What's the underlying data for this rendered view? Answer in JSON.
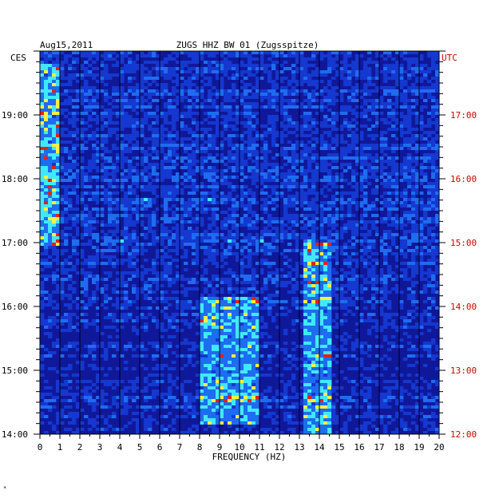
{
  "chart_data": {
    "type": "heatmap",
    "date": "Aug15,2011",
    "title": "ZUGS HHZ BW 01 (Zugsspitze)",
    "left_timezone": "CES",
    "right_timezone": "UTC",
    "xlabel": "FREQUENCY (HZ)",
    "xlim": [
      0,
      20
    ],
    "x_ticks": [
      "0",
      "1",
      "2",
      "3",
      "4",
      "5",
      "6",
      "7",
      "8",
      "9",
      "10",
      "11",
      "12",
      "13",
      "14",
      "15",
      "16",
      "17",
      "18",
      "19",
      "20"
    ],
    "left_time_ticks": [
      "19:00",
      "18:00",
      "17:00",
      "16:00",
      "15:00",
      "14:00"
    ],
    "right_time_ticks": [
      "17:00",
      "16:00",
      "15:00",
      "14:00",
      "13:00",
      "12:00"
    ],
    "time_range_local": [
      "14:00",
      "19:50"
    ],
    "grid": true,
    "colors": {
      "background": "#10189a",
      "low": "#0a10a8",
      "mid": "#1e6cf0",
      "high_cyan": "#40e8ff",
      "peak_yellow": "#f8f040",
      "peak_red": "#e82010",
      "grid": "#000000",
      "utc_text": "#cc0000",
      "text": "#000000"
    },
    "features": [
      {
        "name": "low-frequency noise band",
        "freq_hz": [
          0,
          1
        ],
        "time": "17:00-19:50",
        "level": "high"
      },
      {
        "name": "activity cluster",
        "freq_hz": [
          8,
          11
        ],
        "time": "14:10-16:10",
        "level": "high"
      },
      {
        "name": "narrow line",
        "freq_hz": [
          13.3,
          14.5
        ],
        "time": "14:00-17:00",
        "level": "high"
      }
    ]
  },
  "footer_mark": "*"
}
